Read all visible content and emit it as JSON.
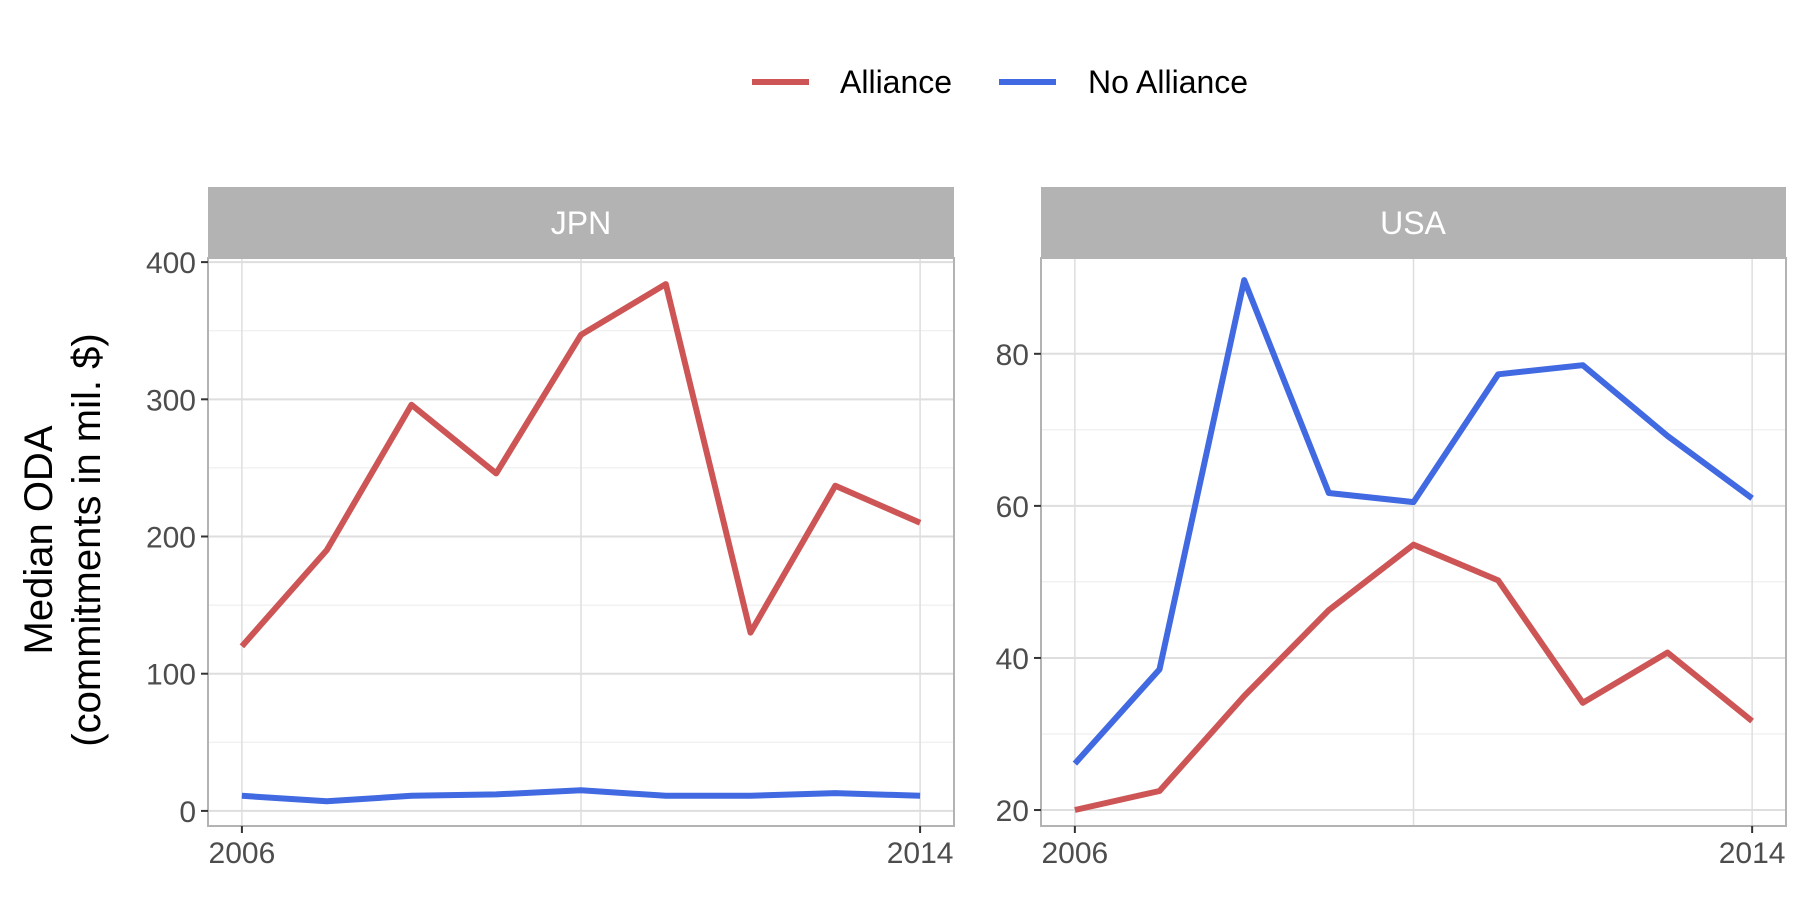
{
  "chart_data": {
    "type": "line",
    "legend": {
      "position": "top",
      "entries": [
        {
          "label": "Alliance",
          "color": "#CD5555"
        },
        {
          "label": "No Alliance",
          "color": "#4169E1"
        }
      ]
    },
    "ylabel_line1": "Median ODA",
    "ylabel_line2": "(commitments in mil. $)",
    "xlabel": "",
    "grid": true,
    "facets": [
      {
        "strip": "JPN",
        "x": [
          2006,
          2007,
          2008,
          2009,
          2010,
          2011,
          2012,
          2013,
          2014
        ],
        "xlim": [
          2005.6,
          2014.4
        ],
        "xticks": [
          2006,
          2014
        ],
        "xgrid": [
          2006,
          2010,
          2014
        ],
        "ylim": [
          -11,
          403
        ],
        "yticks": [
          0,
          100,
          200,
          300,
          400
        ],
        "series": [
          {
            "name": "Alliance",
            "color": "#CD5555",
            "values": [
              120,
              190,
              296,
              246,
              347,
              384,
              130,
              237,
              210
            ]
          },
          {
            "name": "No Alliance",
            "color": "#4169E1",
            "values": [
              11,
              7,
              11,
              12,
              15,
              11,
              11,
              13,
              11
            ]
          }
        ]
      },
      {
        "strip": "USA",
        "x": [
          2006,
          2007,
          2008,
          2009,
          2010,
          2011,
          2012,
          2013,
          2014
        ],
        "xlim": [
          2005.6,
          2014.4
        ],
        "xticks": [
          2006,
          2014
        ],
        "xgrid": [
          2006,
          2010,
          2014
        ],
        "ylim": [
          17.9,
          92.6
        ],
        "yticks": [
          20,
          40,
          60,
          80
        ],
        "series": [
          {
            "name": "Alliance",
            "color": "#CD5555",
            "values": [
              20,
              22.5,
              35,
              46.3,
              54.9,
              50.2,
              34.1,
              40.7,
              31.7
            ]
          },
          {
            "name": "No Alliance",
            "color": "#4169E1",
            "values": [
              26.1,
              38.5,
              89.7,
              61.7,
              60.5,
              77.3,
              78.5,
              69.2,
              61
            ]
          }
        ]
      }
    ]
  }
}
